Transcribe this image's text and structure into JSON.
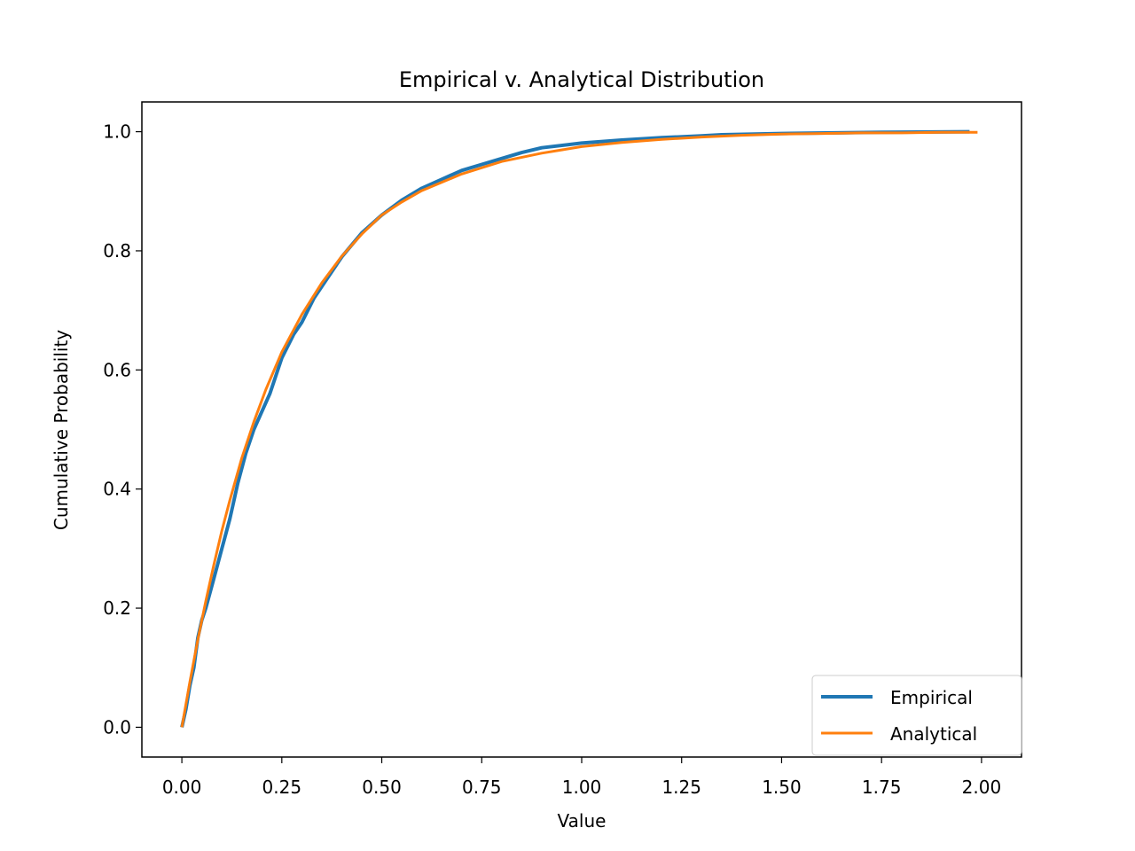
{
  "chart_data": {
    "type": "line",
    "title": "Empirical v. Analytical Distribution",
    "xlabel": "Value",
    "ylabel": "Cumulative Probability",
    "xlim": [
      -0.1,
      2.1
    ],
    "ylim": [
      -0.05,
      1.05
    ],
    "xticks": [
      0.0,
      0.25,
      0.5,
      0.75,
      1.0,
      1.25,
      1.5,
      1.75,
      2.0
    ],
    "xtick_labels": [
      "0.00",
      "0.25",
      "0.50",
      "0.75",
      "1.00",
      "1.25",
      "1.50",
      "1.75",
      "2.00"
    ],
    "yticks": [
      0.0,
      0.2,
      0.4,
      0.6,
      0.8,
      1.0
    ],
    "ytick_labels": [
      "0.0",
      "0.2",
      "0.4",
      "0.6",
      "0.8",
      "1.0"
    ],
    "grid": false,
    "legend_position": "lower-right",
    "series": [
      {
        "name": "Empirical",
        "color": "#1f77b4",
        "x": [
          0.0,
          0.01,
          0.02,
          0.03,
          0.04,
          0.05,
          0.06,
          0.08,
          0.1,
          0.12,
          0.14,
          0.16,
          0.18,
          0.2,
          0.22,
          0.25,
          0.28,
          0.3,
          0.33,
          0.36,
          0.4,
          0.45,
          0.5,
          0.55,
          0.6,
          0.65,
          0.7,
          0.75,
          0.8,
          0.85,
          0.9,
          1.0,
          1.1,
          1.2,
          1.3,
          1.35,
          1.5,
          1.75,
          1.97
        ],
        "y": [
          0.0,
          0.03,
          0.07,
          0.1,
          0.15,
          0.18,
          0.2,
          0.25,
          0.3,
          0.35,
          0.41,
          0.46,
          0.5,
          0.53,
          0.56,
          0.62,
          0.66,
          0.68,
          0.72,
          0.75,
          0.79,
          0.83,
          0.86,
          0.885,
          0.905,
          0.92,
          0.935,
          0.945,
          0.955,
          0.965,
          0.973,
          0.981,
          0.986,
          0.99,
          0.993,
          0.995,
          0.997,
          0.999,
          1.0
        ]
      },
      {
        "name": "Analytical",
        "color": "#ff7f0e",
        "x": [
          0.0,
          0.02,
          0.04,
          0.06,
          0.08,
          0.1,
          0.12,
          0.15,
          0.18,
          0.21,
          0.25,
          0.3,
          0.35,
          0.4,
          0.45,
          0.5,
          0.55,
          0.6,
          0.7,
          0.8,
          0.9,
          1.0,
          1.1,
          1.2,
          1.3,
          1.4,
          1.5,
          1.6,
          1.7,
          1.8,
          1.9,
          1.99
        ],
        "y": [
          0.0,
          0.076,
          0.147,
          0.212,
          0.273,
          0.33,
          0.381,
          0.452,
          0.513,
          0.567,
          0.63,
          0.693,
          0.746,
          0.791,
          0.828,
          0.86,
          0.882,
          0.901,
          0.929,
          0.95,
          0.964,
          0.975,
          0.982,
          0.987,
          0.991,
          0.994,
          0.996,
          0.997,
          0.998,
          0.998,
          0.999,
          0.999
        ]
      }
    ]
  }
}
